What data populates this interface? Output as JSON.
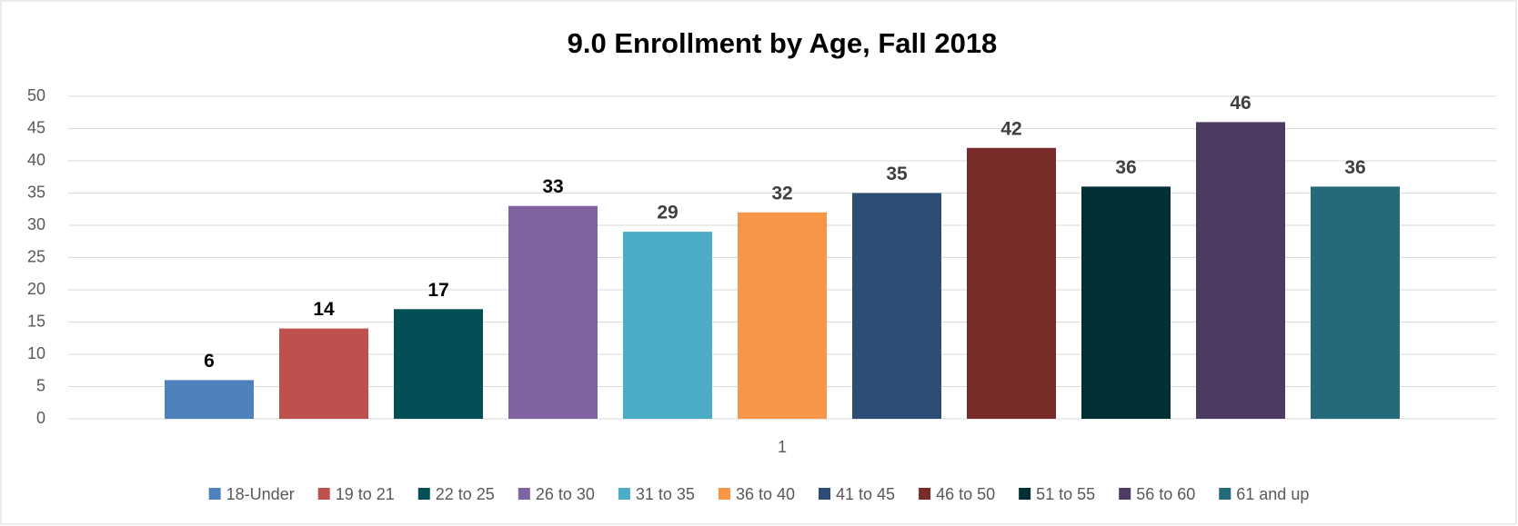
{
  "chart_data": {
    "type": "bar",
    "title": "9.0 Enrollment by Age, Fall 2018",
    "categories": [
      "1"
    ],
    "series": [
      {
        "name": "18-Under",
        "color": "#4f81bd",
        "label_color": "#000000",
        "values": [
          6
        ]
      },
      {
        "name": "19 to 21",
        "color": "#c0504d",
        "label_color": "#000000",
        "values": [
          14
        ]
      },
      {
        "name": "22 to 25",
        "color": "#044f55",
        "label_color": "#000000",
        "values": [
          17
        ]
      },
      {
        "name": "26 to 30",
        "color": "#8064a2",
        "label_color": "#000000",
        "values": [
          33
        ]
      },
      {
        "name": "31 to 35",
        "color": "#4bacc6",
        "label_color": "#404040",
        "values": [
          29
        ]
      },
      {
        "name": "36 to 40",
        "color": "#f79646",
        "label_color": "#404040",
        "values": [
          32
        ]
      },
      {
        "name": "41 to 45",
        "color": "#2c4d75",
        "label_color": "#404040",
        "values": [
          35
        ]
      },
      {
        "name": "46 to 50",
        "color": "#772c2a",
        "label_color": "#404040",
        "values": [
          42
        ]
      },
      {
        "name": "51 to 55",
        "color": "#022f33",
        "label_color": "#404040",
        "values": [
          36
        ]
      },
      {
        "name": "56 to 60",
        "color": "#4d3b62",
        "label_color": "#404040",
        "values": [
          46
        ]
      },
      {
        "name": "61 and up",
        "color": "#246a7a",
        "label_color": "#404040",
        "values": [
          36
        ]
      }
    ],
    "ylim": [
      0,
      50
    ],
    "yticks": [
      0,
      5,
      10,
      15,
      20,
      25,
      30,
      35,
      40,
      45,
      50
    ],
    "grid": true,
    "legend": "bottom"
  }
}
